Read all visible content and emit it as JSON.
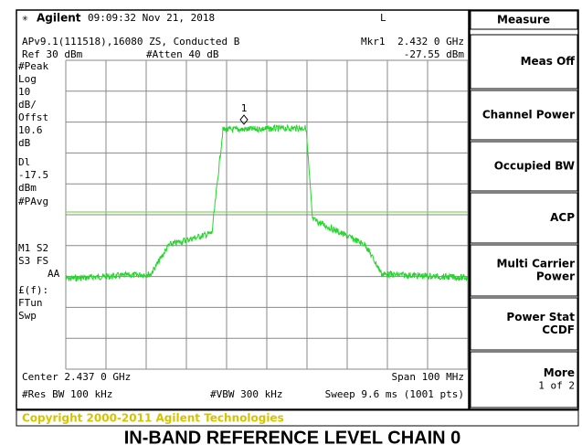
{
  "status_bar": {
    "brand": "Agilent",
    "time": "09:09:32  Nov 21, 2018",
    "mode": "L"
  },
  "info": {
    "line1_left": "APv9.1(111518),16080 ZS, Conducted B",
    "marker_label": "Mkr1",
    "marker_freq": "2.432 0 GHz",
    "ref": "Ref 30 dBm",
    "atten": "#Atten 40 dB",
    "marker_level": "-27.55 dBm"
  },
  "side_labels": [
    "#Peak",
    "Log",
    "10",
    "dB/",
    "Offst",
    "10.6",
    "dB",
    "Dl",
    "-17.5",
    "dBm",
    "#PAvg",
    "M1  S2",
    "S3  FS",
    "AA",
    "£(f):",
    "FTun",
    "Swp"
  ],
  "marker_number": "1",
  "footer": {
    "center": "Center 2.437 0 GHz",
    "span": "Span 100 MHz",
    "rbw": "#Res BW 100 kHz",
    "vbw": "#VBW 300 kHz",
    "sweep": "Sweep 9.6 ms (1001 pts)"
  },
  "menu": {
    "title": "Measure",
    "keys": [
      [
        "Meas Off"
      ],
      [
        "Channel Power"
      ],
      [
        "Occupied BW"
      ],
      [
        "ACP"
      ],
      [
        "Multi Carrier",
        "Power"
      ],
      [
        "Power Stat",
        "CCDF"
      ],
      [
        "More",
        "1 of 2"
      ]
    ]
  },
  "copyright": "Copyright 2000-2011 Agilent Technologies",
  "caption": "IN-BAND REFERENCE LEVEL CHAIN 0"
}
